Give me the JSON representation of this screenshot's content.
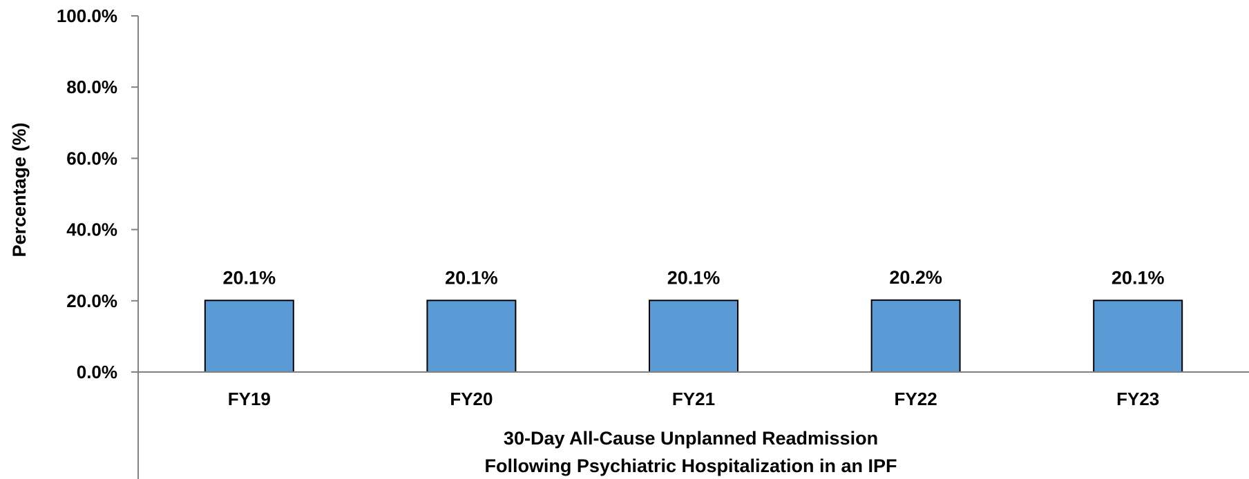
{
  "chart_data": {
    "type": "bar",
    "categories": [
      "FY19",
      "FY20",
      "FY21",
      "FY22",
      "FY23"
    ],
    "values": [
      20.1,
      20.1,
      20.1,
      20.2,
      20.1
    ],
    "data_labels": [
      "20.1%",
      "20.1%",
      "20.1%",
      "20.2%",
      "20.1%"
    ],
    "title": "",
    "ylabel": "Percentage (%)",
    "xlabel_lines": [
      "30-Day All-Cause Unplanned Readmission",
      "Following Psychiatric Hospitalization in an IPF"
    ],
    "ylim": [
      0,
      100
    ],
    "yticks": [
      0,
      20,
      40,
      60,
      80,
      100
    ],
    "ytick_labels": [
      "0.0%",
      "20.0%",
      "40.0%",
      "60.0%",
      "80.0%",
      "100.0%"
    ],
    "grid": false,
    "legend": "none",
    "bar_color": "#5b9bd5",
    "bar_edge_color": "#000000",
    "axis_color": "#808080"
  }
}
